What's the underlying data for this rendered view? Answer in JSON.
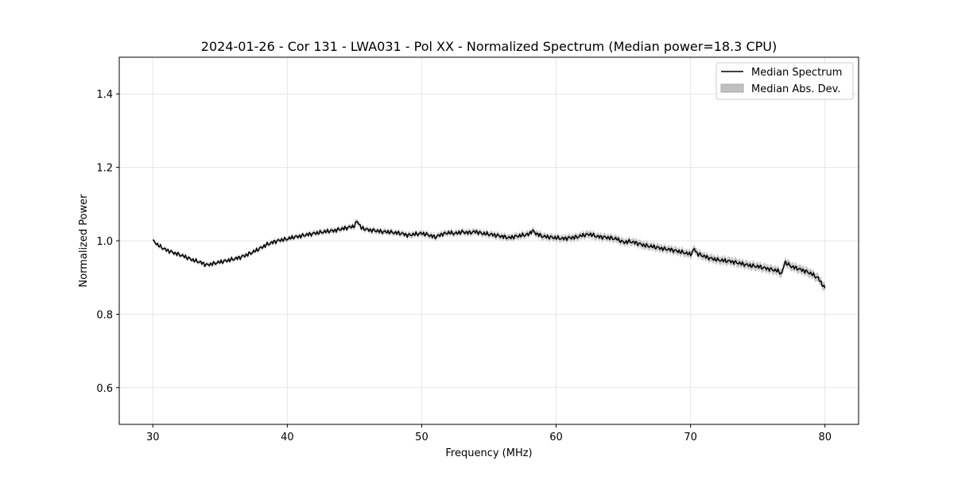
{
  "chart_data": {
    "type": "line",
    "title": "2024-01-26 - Cor 131 - LWA031 - Pol XX - Normalized Spectrum (Median power=18.3 CPU)",
    "xlabel": "Frequency (MHz)",
    "ylabel": "Normalized Power",
    "xlim": [
      27.5,
      82.5
    ],
    "ylim": [
      0.5,
      1.5
    ],
    "xticks": [
      30,
      40,
      50,
      60,
      70,
      80
    ],
    "yticks": [
      0.6,
      0.8,
      1.0,
      1.2,
      1.4
    ],
    "xtick_labels": [
      "30",
      "40",
      "50",
      "60",
      "70",
      "80"
    ],
    "ytick_labels": [
      "0.6",
      "0.8",
      "1.0",
      "1.2",
      "1.4"
    ],
    "grid": true,
    "legend_position": "top-right",
    "legend": [
      "Median Spectrum",
      "Median Abs. Dev."
    ],
    "colors": {
      "line": "#000000",
      "band": "#c0c0c0",
      "grid": "#e6e6e6"
    },
    "series": [
      {
        "name": "Median Spectrum",
        "x": [
          30,
          30.5,
          31,
          31.5,
          32,
          32.5,
          33,
          33.5,
          34,
          34.5,
          35,
          35.5,
          36,
          36.5,
          37,
          37.5,
          38,
          38.5,
          39,
          39.5,
          40,
          40.5,
          41,
          41.5,
          42,
          42.5,
          43,
          43.5,
          44,
          44.5,
          45,
          45.2,
          45.5,
          46,
          46.5,
          47,
          47.5,
          48,
          48.5,
          49,
          49.5,
          50,
          50.5,
          51,
          51.5,
          52,
          52.5,
          53,
          53.5,
          54,
          54.5,
          55,
          55.5,
          56,
          56.5,
          57,
          57.5,
          58,
          58.2,
          58.5,
          59,
          59.5,
          60,
          60.5,
          61,
          61.5,
          62,
          62.5,
          63,
          63.5,
          64,
          64.5,
          65,
          65.5,
          66,
          66.5,
          67,
          67.5,
          68,
          68.5,
          69,
          69.5,
          70,
          70.3,
          70.5,
          71,
          71.5,
          72,
          72.5,
          73,
          73.5,
          74,
          74.5,
          75,
          75.5,
          76,
          76.5,
          76.8,
          77,
          77.5,
          78,
          78.5,
          79,
          79.5,
          80
        ],
        "values": [
          1.0,
          0.985,
          0.975,
          0.968,
          0.962,
          0.955,
          0.947,
          0.942,
          0.934,
          0.938,
          0.942,
          0.946,
          0.95,
          0.955,
          0.962,
          0.97,
          0.98,
          0.99,
          0.997,
          1.002,
          1.005,
          1.01,
          1.013,
          1.017,
          1.02,
          1.023,
          1.026,
          1.028,
          1.032,
          1.036,
          1.04,
          1.055,
          1.035,
          1.03,
          1.028,
          1.025,
          1.024,
          1.022,
          1.02,
          1.015,
          1.018,
          1.02,
          1.016,
          1.01,
          1.018,
          1.022,
          1.02,
          1.024,
          1.022,
          1.025,
          1.02,
          1.018,
          1.015,
          1.012,
          1.008,
          1.012,
          1.015,
          1.018,
          1.028,
          1.02,
          1.012,
          1.01,
          1.008,
          1.006,
          1.008,
          1.01,
          1.015,
          1.018,
          1.012,
          1.01,
          1.008,
          1.005,
          0.996,
          0.998,
          0.994,
          0.988,
          0.985,
          0.982,
          0.978,
          0.976,
          0.972,
          0.968,
          0.963,
          0.978,
          0.965,
          0.958,
          0.952,
          0.948,
          0.946,
          0.944,
          0.94,
          0.936,
          0.932,
          0.93,
          0.926,
          0.922,
          0.918,
          0.91,
          0.942,
          0.93,
          0.924,
          0.918,
          0.91,
          0.898,
          0.87
        ]
      }
    ],
    "mad_band": {
      "name": "Median Abs. Dev.",
      "half_width_start": 0.005,
      "half_width_end": 0.012
    }
  }
}
